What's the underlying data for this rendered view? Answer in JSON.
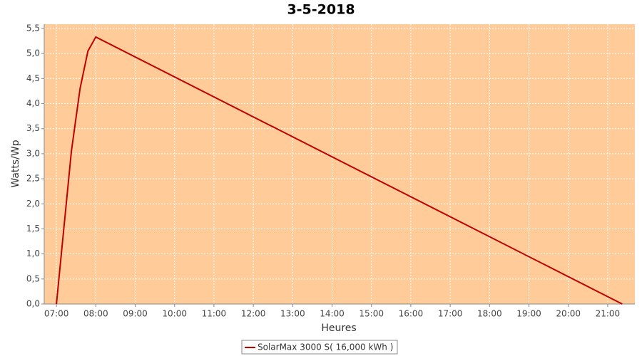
{
  "chart_data": {
    "type": "line",
    "title": "3-5-2018",
    "x_label": "Heures",
    "y_label": "Watts/Wp",
    "x": [
      7.0,
      7.38,
      7.6,
      7.8,
      8.0,
      21.37
    ],
    "series": [
      {
        "name": "SolarMax 3000 S( 16,000 kWh )",
        "color": "#c00000",
        "values": [
          0,
          3.05,
          4.3,
          5.05,
          5.33,
          0
        ]
      }
    ],
    "xlim": [
      6.69,
      21.69
    ],
    "xticks": [
      {
        "value": 7,
        "label": "07:00"
      },
      {
        "value": 8,
        "label": "08:00"
      },
      {
        "value": 9,
        "label": "09:00"
      },
      {
        "value": 10,
        "label": "10:00"
      },
      {
        "value": 11,
        "label": "11:00"
      },
      {
        "value": 12,
        "label": "12:00"
      },
      {
        "value": 13,
        "label": "13:00"
      },
      {
        "value": 14,
        "label": "14:00"
      },
      {
        "value": 15,
        "label": "15:00"
      },
      {
        "value": 16,
        "label": "16:00"
      },
      {
        "value": 17,
        "label": "17:00"
      },
      {
        "value": 18,
        "label": "18:00"
      },
      {
        "value": 19,
        "label": "19:00"
      },
      {
        "value": 20,
        "label": "20:00"
      },
      {
        "value": 21,
        "label": "21:00"
      }
    ],
    "ylim": [
      0,
      5.585
    ],
    "yticks": [
      {
        "value": 0,
        "label": "0,0"
      },
      {
        "value": 0.5,
        "label": "0,5"
      },
      {
        "value": 1,
        "label": "1,0"
      },
      {
        "value": 1.5,
        "label": "1,5"
      },
      {
        "value": 2,
        "label": "2,0"
      },
      {
        "value": 2.5,
        "label": "2,5"
      },
      {
        "value": 3,
        "label": "3,0"
      },
      {
        "value": 3.5,
        "label": "3,5"
      },
      {
        "value": 4,
        "label": "4,0"
      },
      {
        "value": 4.5,
        "label": "4,5"
      },
      {
        "value": 5,
        "label": "5,0"
      },
      {
        "value": 5.5,
        "label": "5,5"
      }
    ],
    "grid": true,
    "plot_background": "#ffcc99"
  }
}
